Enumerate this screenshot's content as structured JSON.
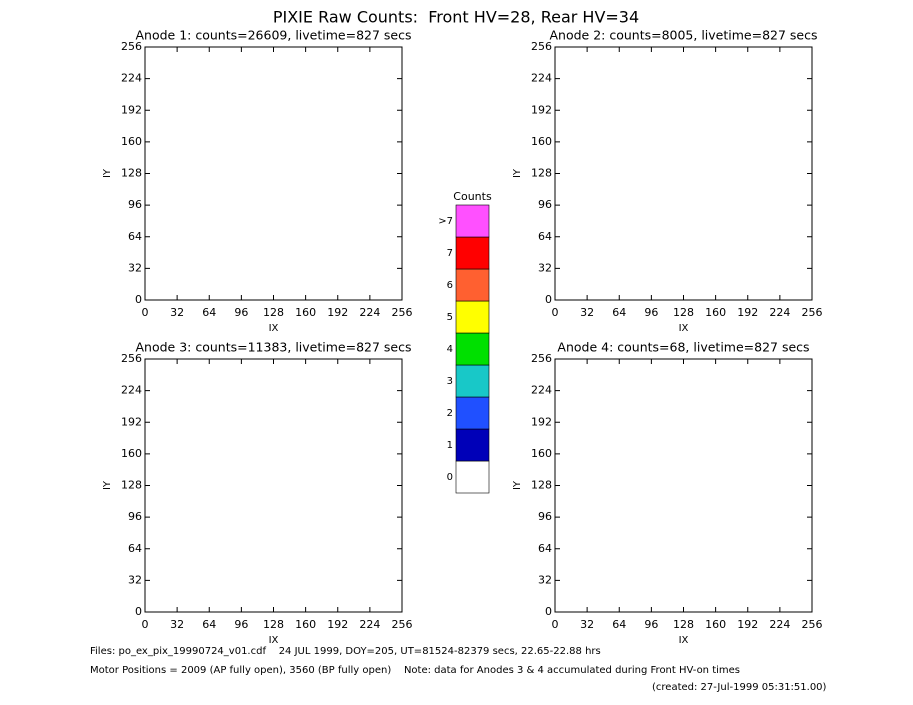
{
  "title": "PIXIE Raw Counts:  Front HV=28, Rear HV=34",
  "chart_data": [
    {
      "type": "heatmap",
      "title": "Anode 1: counts=26609, livetime=827 secs",
      "xlabel": "IX",
      "ylabel": "IY",
      "xlim": [
        0,
        256
      ],
      "ylim": [
        0,
        256
      ],
      "xticks": [
        0,
        32,
        64,
        96,
        128,
        160,
        192,
        224,
        256
      ],
      "yticks": [
        0,
        32,
        64,
        96,
        128,
        160,
        192,
        224,
        256
      ]
    },
    {
      "type": "heatmap",
      "title": "Anode 2: counts=8005, livetime=827 secs",
      "xlabel": "IX",
      "ylabel": "IY",
      "xlim": [
        0,
        256
      ],
      "ylim": [
        0,
        256
      ],
      "xticks": [
        0,
        32,
        64,
        96,
        128,
        160,
        192,
        224,
        256
      ],
      "yticks": [
        0,
        32,
        64,
        96,
        128,
        160,
        192,
        224,
        256
      ]
    },
    {
      "type": "heatmap",
      "title": "Anode 3: counts=11383, livetime=827 secs",
      "xlabel": "IX",
      "ylabel": "IY",
      "xlim": [
        0,
        256
      ],
      "ylim": [
        0,
        256
      ],
      "xticks": [
        0,
        32,
        64,
        96,
        128,
        160,
        192,
        224,
        256
      ],
      "yticks": [
        0,
        32,
        64,
        96,
        128,
        160,
        192,
        224,
        256
      ]
    },
    {
      "type": "heatmap",
      "title": "Anode 4: counts=68, livetime=827 secs",
      "xlabel": "IX",
      "ylabel": "IY",
      "xlim": [
        0,
        256
      ],
      "ylim": [
        0,
        256
      ],
      "xticks": [
        0,
        32,
        64,
        96,
        128,
        160,
        192,
        224,
        256
      ],
      "yticks": [
        0,
        32,
        64,
        96,
        128,
        160,
        192,
        224,
        256
      ]
    },
    {
      "type": "colorbar",
      "title": "Counts",
      "categories": [
        "0",
        "1",
        "2",
        "3",
        "4",
        "5",
        "6",
        "7",
        ">7"
      ],
      "colors": [
        "#ffffff",
        "#0000b8",
        "#2050ff",
        "#18c8c8",
        "#00e000",
        "#ffff00",
        "#ff6030",
        "#ff0000",
        "#ff50ff"
      ]
    }
  ],
  "footer": [
    "Files: po_ex_pix_19990724_v01.cdf    24 JUL 1999, DOY=205, UT=81524-82379 secs, 22.65-22.88 hrs",
    "Motor Positions = 2009 (AP fully open), 3560 (BP fully open)    Note: data for Anodes 3 & 4 accumulated during Front HV-on times",
    "(created: 27-Jul-1999 05:31:51.00)"
  ]
}
